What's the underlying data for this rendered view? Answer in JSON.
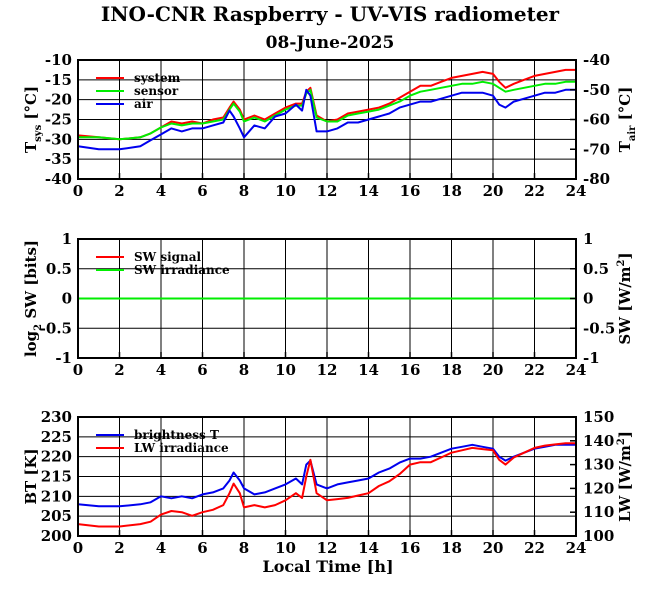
{
  "title": "INO-CNR Raspberry - UV-VIS radiometer",
  "subtitle": "08-June-2025",
  "xlabel": "Local Time [h]",
  "chart_data": [
    {
      "type": "line",
      "id": "temperature",
      "ylabel_left": "T",
      "ylabel_left_sub": "sys",
      "ylabel_left_unit": "[°C]",
      "ylabel_right": "T",
      "ylabel_right_sub": "air",
      "ylabel_right_unit": "[°C]",
      "xlim": [
        0,
        24
      ],
      "xticks": [
        "0",
        "2",
        "4",
        "6",
        "8",
        "10",
        "12",
        "14",
        "16",
        "18",
        "20",
        "22",
        "24"
      ],
      "ylim_left": [
        -40,
        -10
      ],
      "yticks_left": [
        "-40",
        "-35",
        "-30",
        "-25",
        "-20",
        "-15",
        "-10"
      ],
      "ylim_right": [
        -80,
        -40
      ],
      "yticks_right": [
        "-80",
        "-70",
        "-60",
        "-50",
        "-40"
      ],
      "grid": true,
      "legend_position": "top-left",
      "series": [
        {
          "name": "system",
          "color": "#ff0000",
          "axis": "left",
          "x": [
            0,
            1,
            2,
            3,
            3.5,
            4,
            4.5,
            5,
            5.5,
            6,
            6.5,
            7,
            7.3,
            7.5,
            7.8,
            8,
            8.5,
            9,
            9.5,
            10,
            10.5,
            10.8,
            11,
            11.2,
            11.5,
            12,
            12.5,
            13,
            13.5,
            14,
            14.5,
            15,
            15.5,
            16,
            16.5,
            17,
            17.5,
            18,
            18.5,
            19,
            19.5,
            20,
            20.3,
            20.6,
            21,
            21.5,
            22,
            22.5,
            23,
            23.5,
            24
          ],
          "y": [
            -29,
            -29.5,
            -30,
            -29.5,
            -28.5,
            -27,
            -25.5,
            -26,
            -25.5,
            -26,
            -25,
            -24.5,
            -22,
            -20.5,
            -22.5,
            -25,
            -24,
            -25,
            -23.5,
            -22,
            -21,
            -21,
            -18,
            -17,
            -24,
            -25.5,
            -25,
            -23.5,
            -23,
            -22.5,
            -22,
            -21,
            -19.5,
            -18,
            -16.5,
            -16.5,
            -15.5,
            -14.5,
            -14,
            -13.5,
            -13,
            -13.5,
            -15.5,
            -17,
            -16,
            -15,
            -14,
            -13.5,
            -13,
            -12.5,
            -12.5
          ]
        },
        {
          "name": "sensor",
          "color": "#00ee00",
          "axis": "left",
          "x": [
            0,
            1,
            2,
            3,
            3.5,
            4,
            4.5,
            5,
            5.5,
            6,
            6.5,
            7,
            7.3,
            7.5,
            7.8,
            8,
            8.5,
            9,
            9.5,
            10,
            10.5,
            10.8,
            11,
            11.2,
            11.5,
            12,
            12.5,
            13,
            13.5,
            14,
            14.5,
            15,
            15.5,
            16,
            16.5,
            17,
            17.5,
            18,
            18.5,
            19,
            19.5,
            20,
            20.3,
            20.6,
            21,
            21.5,
            22,
            22.5,
            23,
            23.5,
            24
          ],
          "y": [
            -29.5,
            -29.5,
            -30,
            -29.5,
            -28.5,
            -27,
            -26,
            -26.5,
            -26,
            -26,
            -25.5,
            -25,
            -22.5,
            -21,
            -23,
            -25.5,
            -24.5,
            -25.5,
            -24,
            -22.5,
            -21.5,
            -21.5,
            -18.5,
            -17.5,
            -24.5,
            -25.5,
            -25.5,
            -24,
            -23.5,
            -23,
            -22.5,
            -21.5,
            -20.5,
            -19,
            -18,
            -17.5,
            -17,
            -16.5,
            -16,
            -16,
            -15.5,
            -16,
            -17,
            -18,
            -17.5,
            -17,
            -16.5,
            -16,
            -16,
            -15.5,
            -15.5
          ]
        },
        {
          "name": "air",
          "color": "#0000ee",
          "axis": "right",
          "x": [
            0,
            1,
            2,
            3,
            3.5,
            4,
            4.5,
            5,
            5.5,
            6,
            6.5,
            7,
            7.3,
            7.5,
            7.8,
            8,
            8.5,
            9,
            9.5,
            10,
            10.5,
            10.8,
            11,
            11.2,
            11.5,
            12,
            12.5,
            13,
            13.5,
            14,
            14.5,
            15,
            15.5,
            16,
            16.5,
            17,
            17.5,
            18,
            18.5,
            19,
            19.5,
            20,
            20.3,
            20.6,
            21,
            21.5,
            22,
            22.5,
            23,
            23.5,
            24
          ],
          "y": [
            -69,
            -70,
            -70,
            -69,
            -67,
            -65,
            -63,
            -64,
            -63,
            -63,
            -62,
            -61,
            -57,
            -59,
            -63,
            -66,
            -62,
            -63,
            -59,
            -58,
            -55,
            -57,
            -50,
            -52,
            -64,
            -64,
            -63,
            -61,
            -61,
            -60,
            -59,
            -58,
            -56,
            -55,
            -54,
            -54,
            -53,
            -52,
            -51,
            -51,
            -51,
            -52,
            -55,
            -56,
            -54,
            -53,
            -52,
            -51,
            -51,
            -50,
            -50
          ]
        }
      ]
    },
    {
      "type": "line",
      "id": "shortwave",
      "ylabel_left": "log",
      "ylabel_left_sub": "2",
      "ylabel_left_unit": "SW [bits]",
      "ylabel_right": "SW [W/m",
      "ylabel_right_sup": "2",
      "ylabel_right_unit": "]",
      "xlim": [
        0,
        24
      ],
      "xticks": [
        "0",
        "2",
        "4",
        "6",
        "8",
        "10",
        "12",
        "14",
        "16",
        "18",
        "20",
        "22",
        "24"
      ],
      "ylim_left": [
        -1,
        1
      ],
      "yticks_left": [
        "-1",
        "-0.5",
        "0",
        "0.5",
        "1"
      ],
      "ylim_right": [
        -1,
        1
      ],
      "yticks_right": [
        "-1",
        "-0.5",
        "0",
        "0.5",
        "1"
      ],
      "grid": true,
      "legend_position": "top-left",
      "series": [
        {
          "name": "SW signal",
          "color": "#ff0000",
          "axis": "left",
          "x": [
            0,
            24
          ],
          "y": [
            0,
            0
          ]
        },
        {
          "name": "SW irradiance",
          "color": "#00ee00",
          "axis": "right",
          "x": [
            0,
            24
          ],
          "y": [
            0,
            0
          ]
        }
      ]
    },
    {
      "type": "line",
      "id": "longwave",
      "ylabel_left": "BT [K]",
      "ylabel_right": "LW [W/m",
      "ylabel_right_sup": "2",
      "ylabel_right_unit": "]",
      "xlim": [
        0,
        24
      ],
      "xticks": [
        "0",
        "2",
        "4",
        "6",
        "8",
        "10",
        "12",
        "14",
        "16",
        "18",
        "20",
        "22",
        "24"
      ],
      "ylim_left": [
        200,
        230
      ],
      "yticks_left": [
        "200",
        "205",
        "210",
        "215",
        "220",
        "225",
        "230"
      ],
      "ylim_right": [
        100,
        150
      ],
      "yticks_right": [
        "100",
        "110",
        "120",
        "130",
        "140",
        "150"
      ],
      "grid": true,
      "legend_position": "top-left",
      "series": [
        {
          "name": "brightness T",
          "color": "#0000ee",
          "axis": "left",
          "x": [
            0,
            1,
            2,
            3,
            3.5,
            4,
            4.5,
            5,
            5.5,
            6,
            6.5,
            7,
            7.3,
            7.5,
            7.8,
            8,
            8.5,
            9,
            9.5,
            10,
            10.5,
            10.8,
            11,
            11.2,
            11.5,
            12,
            12.5,
            13,
            13.5,
            14,
            14.5,
            15,
            15.5,
            16,
            16.5,
            17,
            17.5,
            18,
            18.5,
            19,
            19.5,
            20,
            20.3,
            20.6,
            21,
            21.5,
            22,
            22.5,
            23,
            23.5,
            24
          ],
          "y": [
            208,
            207.5,
            207.5,
            208,
            208.5,
            210,
            209.5,
            210,
            209.5,
            210.5,
            211,
            212,
            214,
            216,
            214,
            212,
            210.5,
            211,
            212,
            213,
            214.5,
            213,
            218,
            219,
            213,
            212,
            213,
            213.5,
            214,
            214.5,
            216,
            217,
            218.5,
            219.5,
            219.5,
            220,
            221,
            222,
            222.5,
            223,
            222.5,
            222,
            220,
            219,
            220,
            221,
            222,
            222.5,
            223,
            223,
            223
          ]
        },
        {
          "name": "LW irradiance",
          "color": "#ff0000",
          "axis": "right",
          "x": [
            0,
            1,
            2,
            3,
            3.5,
            4,
            4.5,
            5,
            5.5,
            6,
            6.5,
            7,
            7.3,
            7.5,
            7.8,
            8,
            8.5,
            9,
            9.5,
            10,
            10.5,
            10.8,
            11,
            11.2,
            11.5,
            12,
            12.5,
            13,
            13.5,
            14,
            14.5,
            15,
            15.5,
            16,
            16.5,
            17,
            17.5,
            18,
            18.5,
            19,
            19.5,
            20,
            20.3,
            20.6,
            21,
            21.5,
            22,
            22.5,
            23,
            23.5,
            24
          ],
          "y": [
            105,
            104,
            104,
            105,
            106,
            109,
            110.5,
            110,
            108.5,
            110,
            111,
            113,
            118,
            122,
            118,
            112,
            113,
            112,
            113,
            115,
            118,
            116,
            125,
            132,
            118,
            115,
            115.5,
            116,
            117,
            118,
            121,
            123,
            126,
            130,
            131,
            131,
            133,
            135,
            136,
            137,
            136.5,
            136,
            132,
            130,
            133,
            135,
            137,
            138,
            138.5,
            139,
            139
          ]
        }
      ]
    }
  ]
}
